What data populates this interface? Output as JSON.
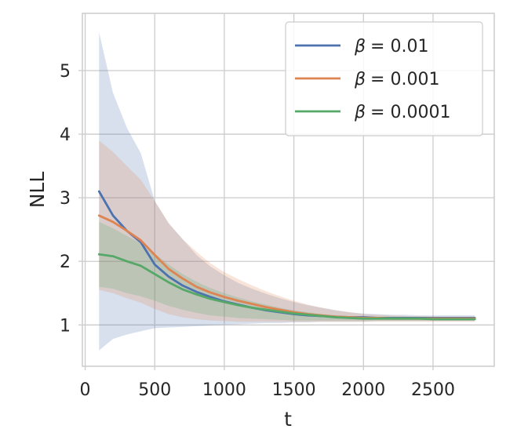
{
  "chart_data": {
    "type": "line",
    "xlabel": "t",
    "ylabel": "NLL",
    "xlim": [
      -20,
      2940
    ],
    "ylim": [
      0.35,
      5.9
    ],
    "xticks": [
      0,
      500,
      1000,
      1500,
      2000,
      2500
    ],
    "yticks": [
      1,
      2,
      3,
      4,
      5
    ],
    "grid": true,
    "legend_position": "top-right",
    "x": [
      100,
      200,
      300,
      400,
      500,
      600,
      700,
      800,
      900,
      1000,
      1100,
      1200,
      1300,
      1400,
      1500,
      1600,
      1700,
      1800,
      1900,
      2000,
      2100,
      2200,
      2300,
      2400,
      2500,
      2600,
      2700,
      2800
    ],
    "series": [
      {
        "name": "β = 0.01",
        "legend_symbol": "β",
        "legend_value": "= 0.01",
        "color": "#4c72b0",
        "values": [
          3.1,
          2.72,
          2.48,
          2.3,
          1.95,
          1.76,
          1.62,
          1.52,
          1.44,
          1.37,
          1.32,
          1.27,
          1.23,
          1.2,
          1.17,
          1.15,
          1.14,
          1.13,
          1.12,
          1.12,
          1.11,
          1.11,
          1.11,
          1.11,
          1.11,
          1.11,
          1.11,
          1.11
        ],
        "upper": [
          5.6,
          4.65,
          4.1,
          3.7,
          2.95,
          2.6,
          2.35,
          2.1,
          1.92,
          1.78,
          1.66,
          1.57,
          1.49,
          1.42,
          1.36,
          1.31,
          1.27,
          1.23,
          1.2,
          1.18,
          1.17,
          1.16,
          1.16,
          1.15,
          1.15,
          1.15,
          1.15,
          1.15
        ],
        "lower": [
          0.6,
          0.78,
          0.85,
          0.9,
          0.95,
          0.96,
          0.97,
          0.98,
          0.99,
          1.0,
          1.01,
          1.02,
          1.03,
          1.03,
          1.04,
          1.04,
          1.05,
          1.05,
          1.05,
          1.05,
          1.06,
          1.06,
          1.06,
          1.06,
          1.06,
          1.06,
          1.06,
          1.06
        ]
      },
      {
        "name": "β = 0.001",
        "legend_symbol": "β",
        "legend_value": "= 0.001",
        "color": "#dd8452",
        "values": [
          2.72,
          2.62,
          2.48,
          2.33,
          2.1,
          1.88,
          1.73,
          1.6,
          1.51,
          1.44,
          1.38,
          1.33,
          1.28,
          1.24,
          1.2,
          1.17,
          1.15,
          1.13,
          1.12,
          1.11,
          1.11,
          1.1,
          1.1,
          1.1,
          1.1,
          1.1,
          1.1,
          1.1
        ],
        "upper": [
          3.9,
          3.72,
          3.5,
          3.28,
          2.95,
          2.6,
          2.35,
          2.15,
          1.97,
          1.83,
          1.72,
          1.62,
          1.53,
          1.45,
          1.38,
          1.32,
          1.27,
          1.23,
          1.2,
          1.17,
          1.16,
          1.15,
          1.14,
          1.14,
          1.13,
          1.13,
          1.13,
          1.13
        ],
        "lower": [
          1.55,
          1.5,
          1.42,
          1.35,
          1.25,
          1.17,
          1.12,
          1.09,
          1.07,
          1.06,
          1.05,
          1.05,
          1.05,
          1.05,
          1.05,
          1.05,
          1.05,
          1.05,
          1.05,
          1.05,
          1.05,
          1.05,
          1.05,
          1.05,
          1.05,
          1.05,
          1.05,
          1.05
        ]
      },
      {
        "name": "β = 0.0001",
        "legend_symbol": "β",
        "legend_value": "= 0.0001",
        "color": "#55a868",
        "values": [
          2.11,
          2.08,
          2.0,
          1.93,
          1.8,
          1.67,
          1.56,
          1.48,
          1.41,
          1.36,
          1.31,
          1.27,
          1.24,
          1.21,
          1.18,
          1.16,
          1.14,
          1.12,
          1.11,
          1.1,
          1.1,
          1.1,
          1.1,
          1.1,
          1.09,
          1.09,
          1.09,
          1.09
        ],
        "upper": [
          2.62,
          2.52,
          2.4,
          2.28,
          2.12,
          1.95,
          1.8,
          1.68,
          1.58,
          1.5,
          1.43,
          1.37,
          1.32,
          1.27,
          1.23,
          1.2,
          1.17,
          1.15,
          1.14,
          1.13,
          1.13,
          1.13,
          1.13,
          1.12,
          1.12,
          1.12,
          1.12,
          1.12
        ],
        "lower": [
          1.6,
          1.57,
          1.5,
          1.45,
          1.38,
          1.3,
          1.24,
          1.19,
          1.15,
          1.13,
          1.11,
          1.1,
          1.09,
          1.08,
          1.07,
          1.07,
          1.07,
          1.07,
          1.07,
          1.07,
          1.07,
          1.07,
          1.07,
          1.07,
          1.07,
          1.07,
          1.07,
          1.07
        ]
      }
    ]
  }
}
